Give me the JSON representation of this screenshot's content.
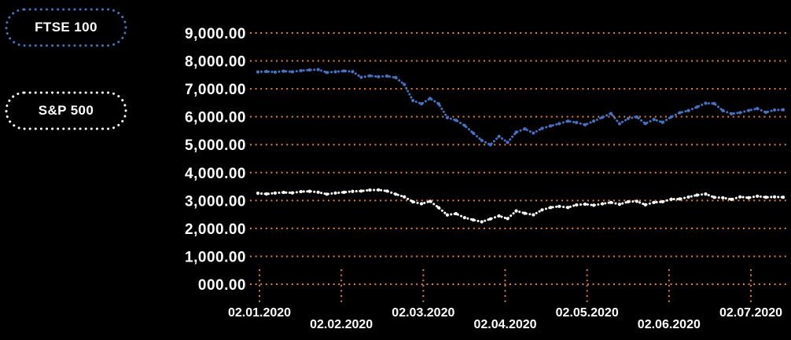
{
  "legend": [
    {
      "label": "FTSE 100",
      "color": "#4472C4"
    },
    {
      "label": "S&P 500",
      "color": "#FFFFFF"
    }
  ],
  "chart_data": {
    "type": "line",
    "title": "",
    "background": "#000000",
    "grid_color": "#ED7D31",
    "text_color": "#FFFFFF",
    "legend_position": "left",
    "grid": true,
    "ylim": [
      0,
      9000
    ],
    "y_ticks": [
      {
        "value": 9000,
        "label": "9,000.00"
      },
      {
        "value": 8000,
        "label": "8,000.00"
      },
      {
        "value": 7000,
        "label": "7,000.00"
      },
      {
        "value": 6000,
        "label": "6,000.00"
      },
      {
        "value": 5000,
        "label": "5,000.00"
      },
      {
        "value": 4000,
        "label": "4,000.00"
      },
      {
        "value": 3000,
        "label": "3,000.00"
      },
      {
        "value": 2000,
        "label": "2,000.00"
      },
      {
        "value": 1000,
        "label": "1,000.00"
      },
      {
        "value": 0,
        "label": "000.00"
      }
    ],
    "x_ticks": [
      "02.01.2020",
      "02.02.2020",
      "02.03.2020",
      "02.04.2020",
      "02.05.2020",
      "02.06.2020",
      "02.07.2020"
    ],
    "series": [
      {
        "name": "FTSE 100",
        "color": "#4472C4",
        "values": [
          7604,
          7622,
          7598,
          7633,
          7610,
          7651,
          7674,
          7690,
          7586,
          7610,
          7640,
          7615,
          7412,
          7466,
          7434,
          7457,
          7403,
          7157,
          6580,
          6463,
          6655,
          6462,
          5966,
          5876,
          5687,
          5416,
          5152,
          4994,
          5295,
          5080,
          5446,
          5566,
          5416,
          5582,
          5672,
          5752,
          5842,
          5792,
          5712,
          5842,
          5978,
          6115,
          5752,
          5936,
          5993,
          5753,
          5904,
          5800,
          5993,
          6144,
          6220,
          6350,
          6484,
          6472,
          6220,
          6106,
          6147,
          6224,
          6292,
          6157,
          6242,
          6250
        ]
      },
      {
        "name": "S&P 500",
        "color": "#FFFFFF",
        "values": [
          3258,
          3235,
          3265,
          3289,
          3274,
          3317,
          3330,
          3296,
          3226,
          3268,
          3295,
          3327,
          3338,
          3373,
          3380,
          3338,
          3226,
          3130,
          2954,
          2882,
          2972,
          2741,
          2481,
          2529,
          2386,
          2305,
          2237,
          2340,
          2448,
          2350,
          2627,
          2542,
          2488,
          2663,
          2750,
          2790,
          2749,
          2843,
          2868,
          2830,
          2881,
          2930,
          2864,
          2955,
          2971,
          2848,
          2930,
          2955,
          3044,
          3055,
          3124,
          3193,
          3232,
          3113,
          3098,
          3041,
          3130,
          3098,
          3155,
          3115,
          3130,
          3116
        ]
      }
    ]
  }
}
